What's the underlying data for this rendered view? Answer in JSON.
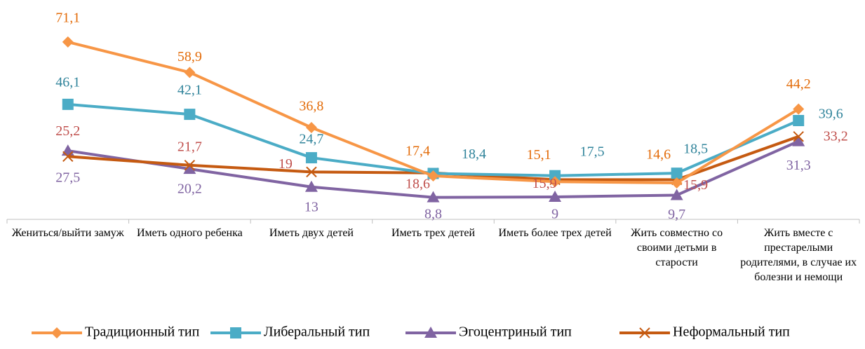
{
  "chart_data": {
    "type": "line",
    "categories": [
      "Жениться/выйти замуж",
      "Иметь одного ребенка",
      "Иметь двух детей",
      "Иметь трех детей",
      "Иметь более трех детей",
      "Жить совместно со своими детьми в старости",
      "Жить вместе с престарелыми родителями, в случае их болезни и немощи"
    ],
    "series": [
      {
        "name": "Традиционный тип",
        "color": "#f79646",
        "label_color": "#e36c0a",
        "marker": "diamond",
        "values": [
          71.1,
          58.9,
          36.8,
          17.4,
          15.1,
          14.6,
          44.2
        ],
        "value_labels": [
          "71,1",
          "58,9",
          "36,8",
          "17,4",
          "15,1",
          "14,6",
          "44,2"
        ]
      },
      {
        "name": "Либеральный тип",
        "color": "#4bacc6",
        "label_color": "#31849b",
        "marker": "square",
        "values": [
          46.1,
          42.1,
          24.7,
          18.4,
          17.5,
          18.5,
          39.6
        ],
        "value_labels": [
          "46,1",
          "42,1",
          "24,7",
          "18,4",
          "17,5",
          "18,5",
          "39,6"
        ]
      },
      {
        "name": "Эгоцентриный тип",
        "color": "#8064a2",
        "label_color": "#8064a2",
        "marker": "triangle",
        "values": [
          27.5,
          20.2,
          13,
          8.8,
          9,
          9.7,
          31.3
        ],
        "value_labels": [
          "27,5",
          "20,2",
          "13",
          "8,8",
          "9",
          "9,7",
          "31,3"
        ]
      },
      {
        "name": "Неформальный тип",
        "color": "#c55a11",
        "label_color": "#c0504d",
        "marker": "x",
        "values": [
          25.2,
          21.7,
          19,
          18.6,
          15.9,
          15.9,
          33.2
        ],
        "value_labels": [
          "25,2",
          "21,7",
          "19",
          "18,6",
          "15,9",
          "15,9",
          "33,2"
        ]
      }
    ],
    "ylim": [
      0,
      75
    ],
    "grid": false
  }
}
